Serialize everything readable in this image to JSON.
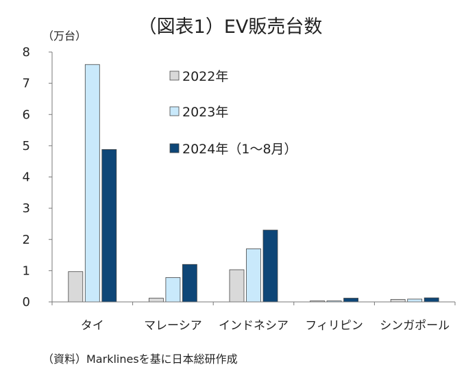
{
  "chart_data": {
    "type": "bar",
    "title": "（図表1）EV販売台数",
    "ylabel": "（万台）",
    "xlabel": "",
    "ylim": [
      0,
      8
    ],
    "yticks": [
      "0",
      "1",
      "2",
      "3",
      "4",
      "5",
      "6",
      "7",
      "8"
    ],
    "categories": [
      "タイ",
      "マレーシア",
      "インドネシア",
      "フィリピン",
      "シンガポール"
    ],
    "series": [
      {
        "name": "2022年",
        "color": "#d9d9d9",
        "values": [
          0.97,
          0.12,
          1.03,
          0.02,
          0.08
        ]
      },
      {
        "name": "2023年",
        "color": "#c9e9fb",
        "values": [
          7.6,
          0.78,
          1.7,
          0.02,
          0.09
        ]
      },
      {
        "name": "2024年（1～8月）",
        "color": "#0e4677",
        "values": [
          4.88,
          1.2,
          2.3,
          0.12,
          0.13
        ]
      }
    ],
    "legend_position": "upper-center",
    "grid": false,
    "source": "（資料）Marklinesを基に日本総研作成"
  }
}
